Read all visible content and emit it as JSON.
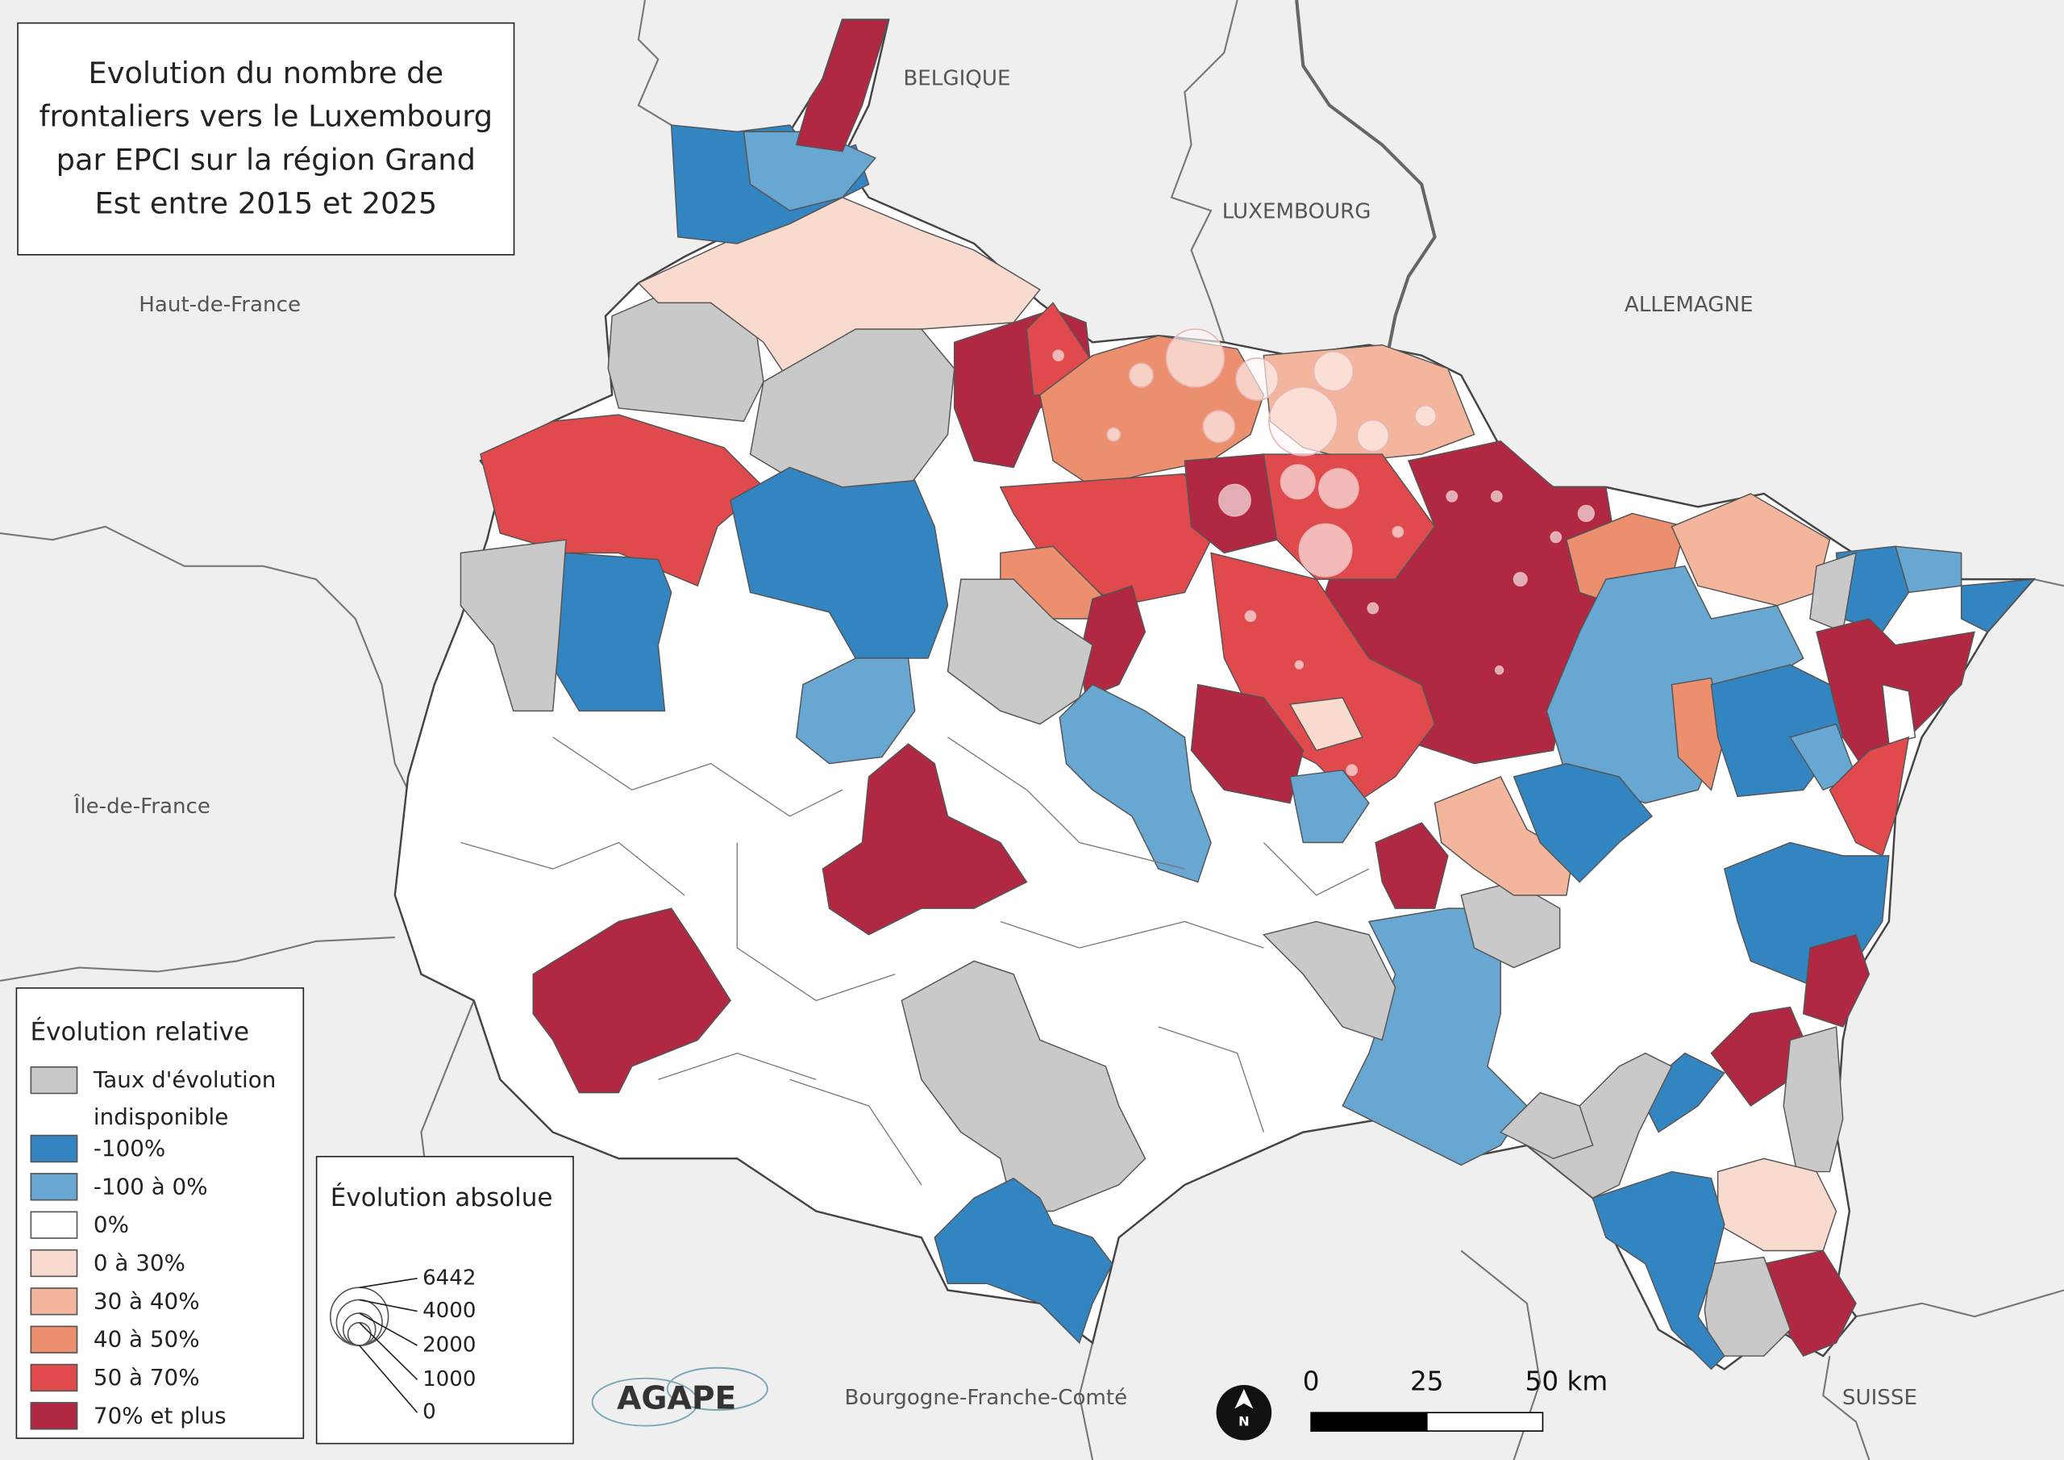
{
  "title": "Evolution du nombre de frontaliers vers le Luxembourg par EPCI sur la région Grand Est entre 2015 et 2025",
  "labels": {
    "belgique": "BELGIQUE",
    "luxembourg": "LUXEMBOURG",
    "allemagne": "ALLEMAGNE",
    "haut_de_france": "Haut-de-France",
    "ile_de_france": "Île-de-France",
    "bourgogne": "Bourgogne-Franche-Comté",
    "suisse": "SUISSE"
  },
  "legend_relative": {
    "title": "Évolution relative",
    "items": [
      {
        "label": "Taux d'évolution indisponible",
        "color": "#c9c9c9"
      },
      {
        "label": "-100%",
        "color": "#3385c1"
      },
      {
        "label": "-100 à 0%",
        "color": "#68a7d1"
      },
      {
        "label": "0%",
        "color": "#ffffff"
      },
      {
        "label": "0 à 30%",
        "color": "#f8dbce"
      },
      {
        "label": "30 à 40%",
        "color": "#f3b69c"
      },
      {
        "label": "40 à 50%",
        "color": "#ec8f6f"
      },
      {
        "label": "50 à 70%",
        "color": "#e04a4c"
      },
      {
        "label": "70% et plus",
        "color": "#b02841"
      }
    ]
  },
  "legend_absolute": {
    "title": "Évolution absolue",
    "values": [
      6442,
      4000,
      2000,
      1000,
      0
    ]
  },
  "scale_bar": {
    "ticks": [
      0,
      25,
      {
        "value": 50,
        "label": "50 km"
      }
    ]
  },
  "north": "N",
  "logo": "AGAPE"
}
